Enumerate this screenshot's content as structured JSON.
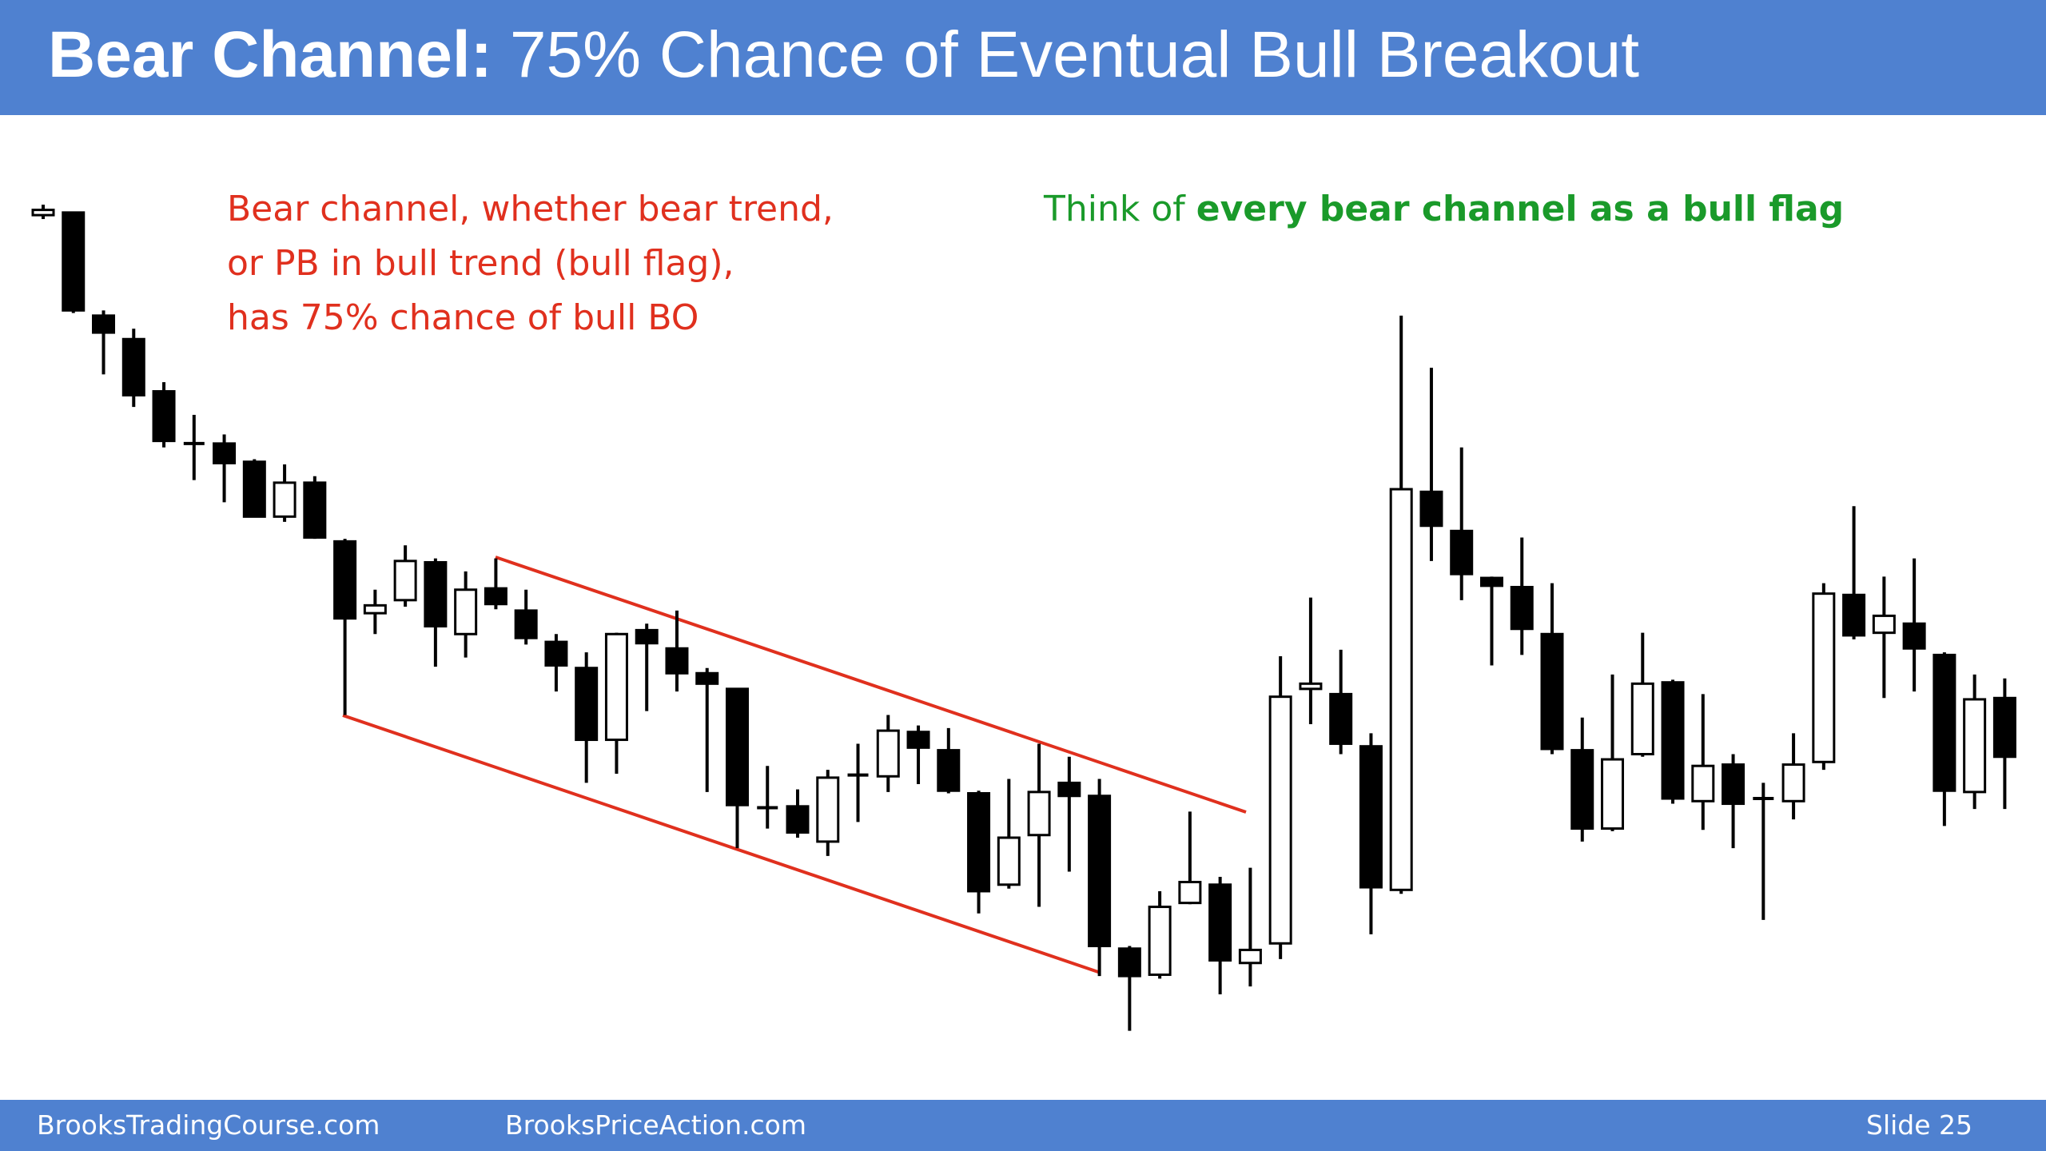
{
  "header": {
    "title_bold": "Bear Channel:",
    "title_rest": "75% Chance of Eventual Bull Breakout"
  },
  "annotations": {
    "left": [
      "Bear channel, whether bear trend,",
      "or PB in bull trend (bull flag),",
      "has 75% chance of bull BO"
    ],
    "right_plain": "Think of",
    "right_bold": "every bear channel as a bull flag"
  },
  "footer": {
    "left": "BrooksTradingCourse.com",
    "middle": "BrooksPriceAction.com",
    "slide": "Slide 25"
  },
  "chart_data": {
    "type": "candlestick",
    "up_color": "#ffffff",
    "down_color": "#000000",
    "ylim": [
      82,
      782
    ],
    "open": [
      717,
      719,
      640,
      622,
      582,
      542,
      542,
      528,
      486,
      512,
      467,
      412,
      422,
      451,
      396,
      431,
      414,
      390,
      370,
      315,
      399,
      385,
      366,
      354,
      263,
      264,
      237,
      288,
      287,
      321,
      307,
      274,
      204,
      242,
      282,
      272,
      155,
      135,
      190,
      204,
      144,
      159,
      354,
      350,
      310,
      200,
      505,
      475,
      439,
      432,
      396,
      307,
      247,
      304,
      359,
      268,
      296,
      270,
      268,
      298,
      426,
      397,
      404,
      380,
      275,
      347
    ],
    "high": [
      725,
      719,
      644,
      630,
      589,
      564,
      549,
      530,
      526,
      517,
      469,
      430,
      464,
      454,
      444,
      454,
      430,
      396,
      382,
      397,
      404,
      414,
      370,
      354,
      295,
      277,
      292,
      312,
      334,
      326,
      324,
      276,
      285,
      312,
      302,
      285,
      157,
      199,
      260,
      210,
      217,
      379,
      424,
      384,
      320,
      640,
      600,
      539,
      440,
      470,
      435,
      332,
      365,
      397,
      361,
      350,
      304,
      282,
      320,
      435,
      494,
      440,
      454,
      382,
      365,
      362
    ],
    "low": [
      714,
      642,
      595,
      570,
      539,
      514,
      497,
      486,
      482,
      469,
      334,
      396,
      417,
      371,
      378,
      415,
      388,
      352,
      282,
      289,
      337,
      352,
      275,
      232,
      247,
      240,
      226,
      252,
      275,
      281,
      274,
      182,
      201,
      187,
      214,
      134,
      92,
      132,
      189,
      120,
      126,
      147,
      327,
      304,
      166,
      197,
      452,
      422,
      372,
      380,
      304,
      237,
      245,
      302,
      266,
      246,
      232,
      177,
      254,
      292,
      392,
      347,
      352,
      249,
      262,
      262
    ],
    "close": [
      721,
      644,
      627,
      579,
      544,
      542,
      527,
      486,
      512,
      470,
      408,
      418,
      452,
      402,
      430,
      419,
      393,
      372,
      315,
      396,
      389,
      366,
      358,
      265,
      263,
      244,
      286,
      288,
      322,
      309,
      276,
      199,
      240,
      275,
      272,
      157,
      134,
      187,
      206,
      146,
      154,
      348,
      358,
      312,
      202,
      507,
      479,
      442,
      433,
      400,
      308,
      247,
      300,
      358,
      270,
      295,
      266,
      270,
      296,
      427,
      395,
      410,
      385,
      276,
      346,
      302
    ]
  }
}
